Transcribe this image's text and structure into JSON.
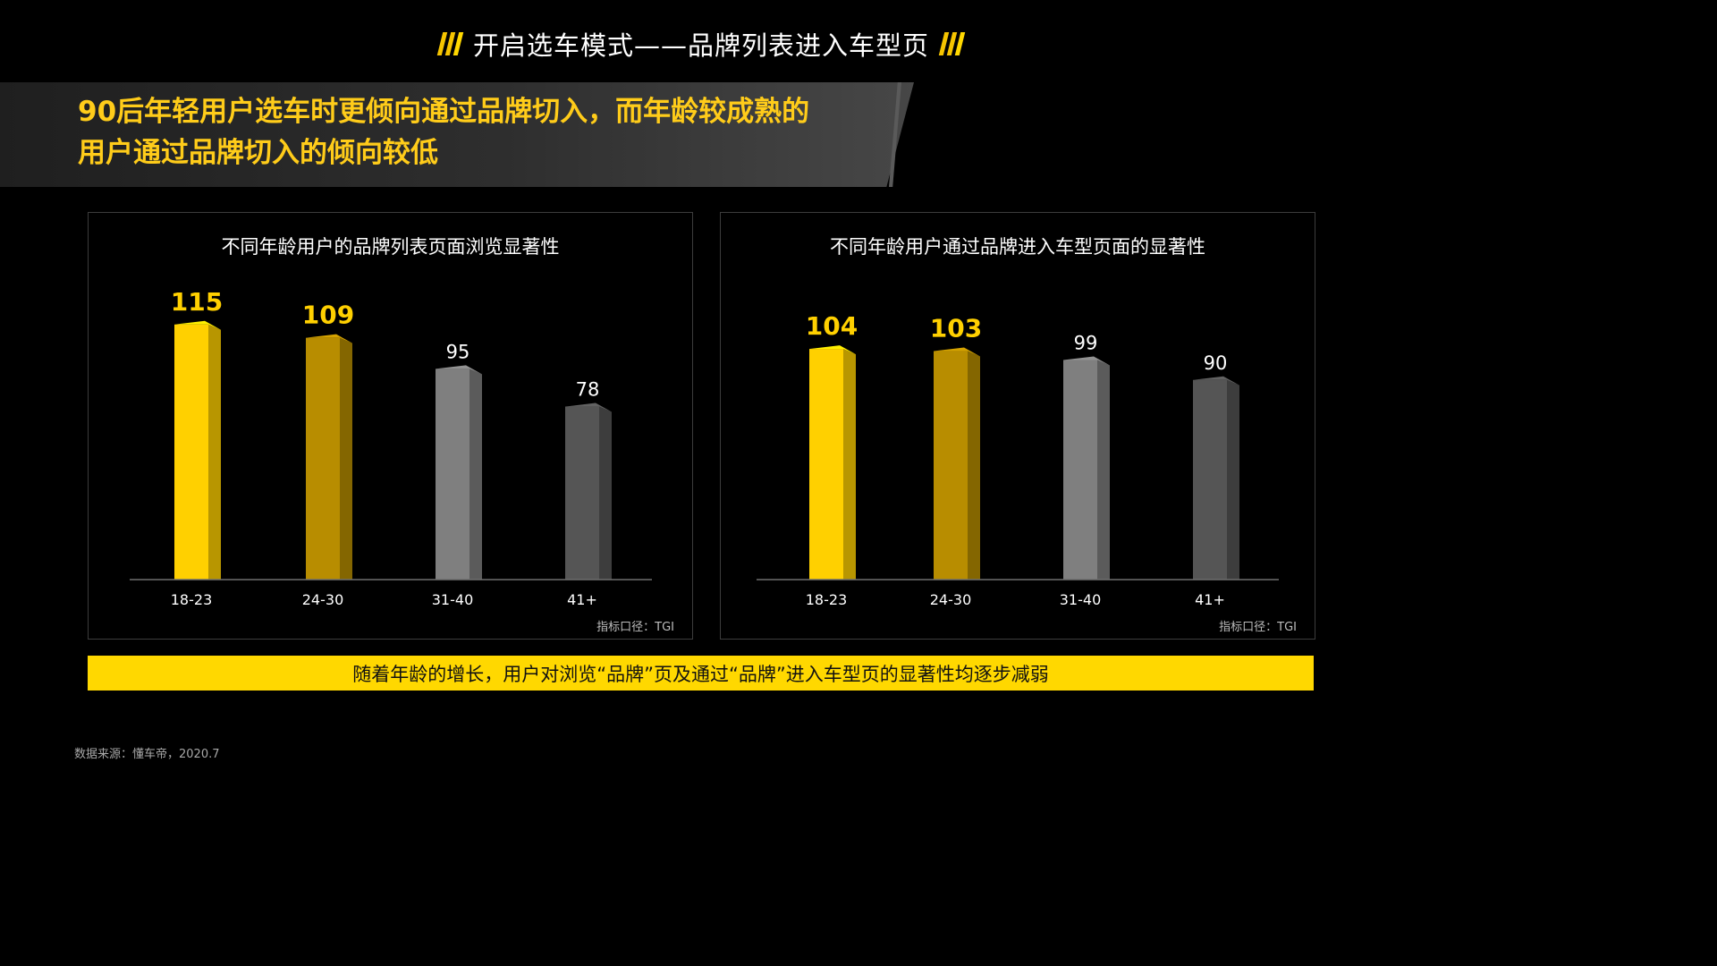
{
  "page": {
    "title": "开启选车模式——品牌列表进入车型页",
    "headline_lines": [
      "90后年轻用户选车时更倾向通过品牌切入，而年龄较成熟的",
      "用户通过品牌切入的倾向较低"
    ],
    "conclusion": "随着年龄的增长，用户对浏览“品牌”页及通过“品牌”进入车型页的显著性均逐步减弱",
    "source": "数据来源：懂车帝，2020.7",
    "colors": {
      "background": "#000000",
      "accent_yellow": "#ffd800",
      "headline_text": "#ffcc1a"
    }
  },
  "chart_data": [
    {
      "type": "bar",
      "title": "不同年龄用户的品牌列表页面浏览显著性",
      "categories": [
        "18-23",
        "24-30",
        "31-40",
        "41+"
      ],
      "values": [
        115,
        109,
        95,
        78
      ],
      "bar_colors": [
        "#ffd000",
        "#b88d00",
        "#7f7f7f",
        "#555555"
      ],
      "label_colors": [
        "#ffd000",
        "#ffd000",
        "#ffffff",
        "#ffffff"
      ],
      "note": "指标口径：TGI",
      "xlabel": "",
      "ylabel": "",
      "ylim": [
        0,
        125
      ],
      "grid": false
    },
    {
      "type": "bar",
      "title": "不同年龄用户通过品牌进入车型页面的显著性",
      "categories": [
        "18-23",
        "24-30",
        "31-40",
        "41+"
      ],
      "values": [
        104,
        103,
        99,
        90
      ],
      "bar_colors": [
        "#ffd000",
        "#b88d00",
        "#7f7f7f",
        "#555555"
      ],
      "label_colors": [
        "#ffd000",
        "#ffd000",
        "#ffffff",
        "#ffffff"
      ],
      "note": "指标口径：TGI",
      "xlabel": "",
      "ylabel": "",
      "ylim": [
        0,
        125
      ],
      "grid": false
    }
  ]
}
